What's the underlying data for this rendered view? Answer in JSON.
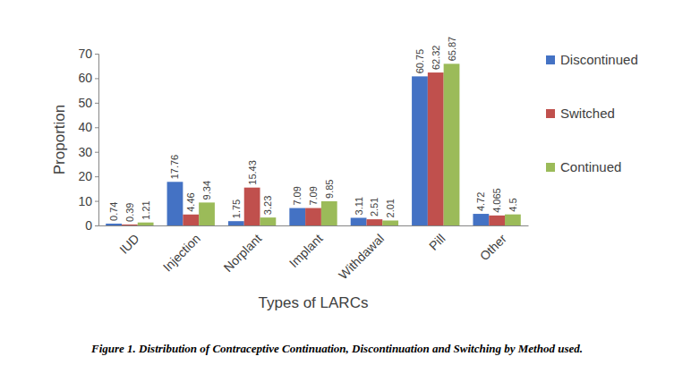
{
  "chart_data": {
    "type": "bar",
    "title": "Figure 1. Distribution of Contraceptive Continuation, Discontinuation and Switching by Method used.",
    "x_label": "Types of LARCs",
    "y_label": "Proportion",
    "categories": [
      "IUD",
      "Injection",
      "Norplant",
      "Implant",
      "Withdawal",
      "Pill",
      "Other"
    ],
    "series": [
      {
        "name": "Discontinued",
        "color": "#4472c4",
        "values": [
          0.74,
          17.76,
          1.75,
          7.09,
          3.11,
          60.75,
          4.72
        ]
      },
      {
        "name": "Switched",
        "color": "#c0504d",
        "values": [
          0.39,
          4.46,
          15.43,
          7.09,
          2.51,
          62.32,
          4.065
        ]
      },
      {
        "name": "Continued",
        "color": "#9bbb59",
        "values": [
          1.21,
          9.34,
          3.23,
          9.85,
          2.01,
          65.87,
          4.5
        ]
      }
    ],
    "ylim": [
      0,
      70
    ],
    "yticks": [
      0,
      10,
      20,
      30,
      40,
      50,
      60,
      70
    ],
    "grid": false,
    "legend": "right",
    "data_labels": true
  }
}
